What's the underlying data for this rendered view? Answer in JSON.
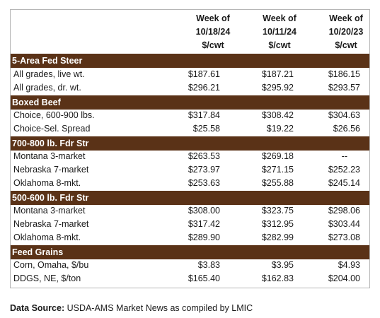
{
  "columns": [
    {
      "line1": "Week of",
      "line2": "10/18/24",
      "unit": "$/cwt"
    },
    {
      "line1": "Week of",
      "line2": "10/11/24",
      "unit": "$/cwt"
    },
    {
      "line1": "Week of",
      "line2": "10/20/23",
      "unit": "$/cwt"
    }
  ],
  "sections": [
    {
      "title": "5-Area Fed Steer",
      "rows": [
        {
          "label": "All grades, live wt.",
          "values": [
            "$187.61",
            "$187.21",
            "$186.15"
          ]
        },
        {
          "label": "All grades, dr. wt.",
          "values": [
            "$296.21",
            "$295.92",
            "$293.57"
          ]
        }
      ]
    },
    {
      "title": "Boxed Beef",
      "rows": [
        {
          "label": "Choice, 600-900 lbs.",
          "values": [
            "$317.84",
            "$308.42",
            "$304.63"
          ]
        },
        {
          "label": "Choice-Sel. Spread",
          "values": [
            "$25.58",
            "$19.22",
            "$26.56"
          ]
        }
      ]
    },
    {
      "title": "700-800 lb. Fdr Str",
      "rows": [
        {
          "label": "Montana 3-market",
          "values": [
            "$263.53",
            "$269.18",
            "--"
          ]
        },
        {
          "label": "Nebraska 7-market",
          "values": [
            "$273.97",
            "$271.15",
            "$252.23"
          ]
        },
        {
          "label": "Oklahoma 8-mkt.",
          "values": [
            "$253.63",
            "$255.88",
            "$245.14"
          ]
        }
      ]
    },
    {
      "title": "500-600 lb. Fdr Str",
      "rows": [
        {
          "label": "Montana 3-market",
          "values": [
            "$308.00",
            "$323.75",
            "$298.06"
          ]
        },
        {
          "label": "Nebraska 7-market",
          "values": [
            "$317.42",
            "$312.95",
            "$303.44"
          ]
        },
        {
          "label": "Oklahoma 8-mkt.",
          "values": [
            "$289.90",
            "$282.99",
            "$273.08"
          ]
        }
      ]
    },
    {
      "title": "Feed Grains",
      "rows": [
        {
          "label": "Corn, Omaha, $/bu",
          "values": [
            "$3.83",
            "$3.95",
            "$4.93"
          ]
        },
        {
          "label": "DDGS, NE, $/ton",
          "values": [
            "$165.40",
            "$162.83",
            "$204.00"
          ]
        }
      ]
    }
  ],
  "source": {
    "label": "Data Source:",
    "text": " USDA-AMS Market News as compiled by LMIC"
  },
  "colors": {
    "band": "#5a3217",
    "border": "#b5b5b5"
  }
}
